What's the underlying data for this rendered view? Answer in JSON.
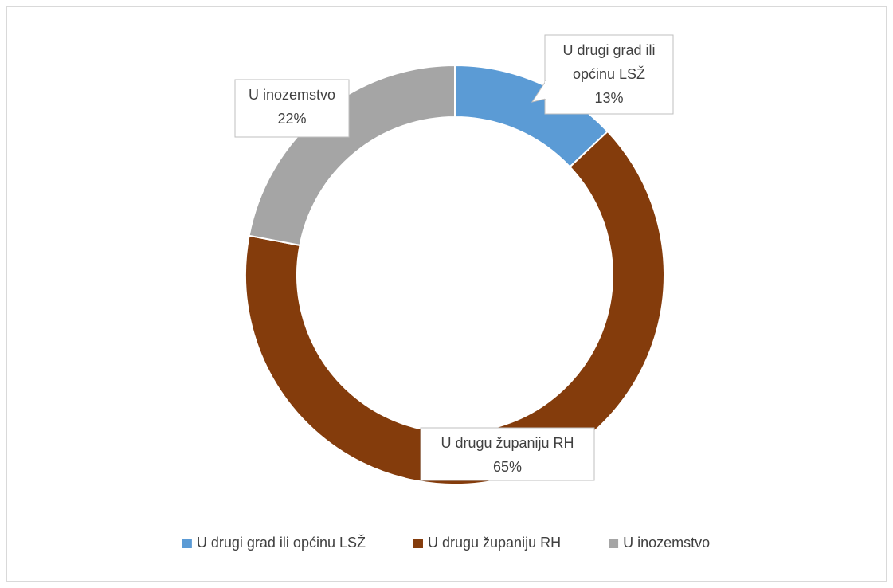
{
  "chart_data": {
    "type": "donut",
    "categories": [
      "U drugi grad ili općinu LSŽ",
      "U drugu županiju RH",
      "U inozemstvo"
    ],
    "values": [
      13,
      65,
      22
    ],
    "value_labels": [
      "13%",
      "65%",
      "22%"
    ],
    "colors": [
      "#5b9bd5",
      "#843c0c",
      "#a5a5a5"
    ],
    "legend": "bottom"
  }
}
